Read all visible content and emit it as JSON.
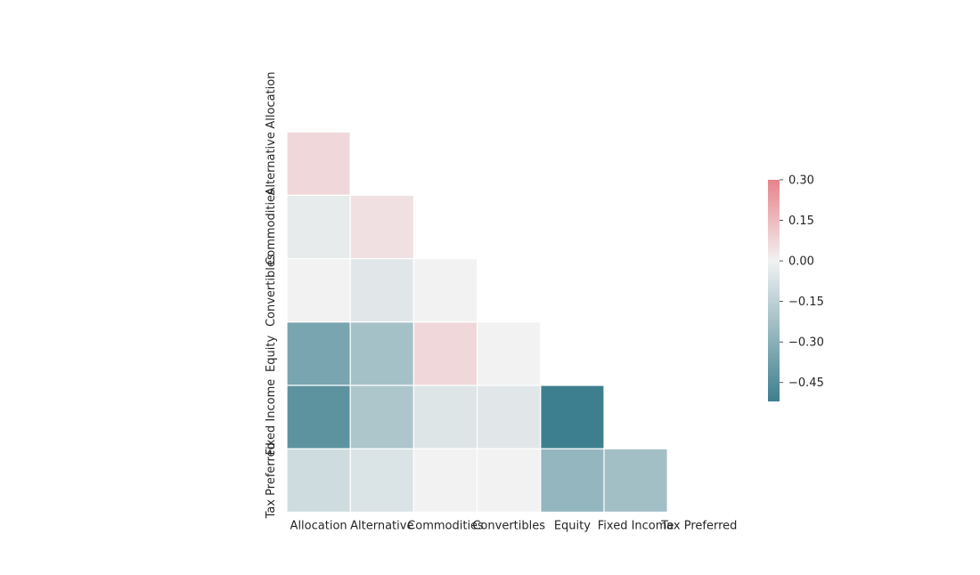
{
  "chart_data": {
    "type": "heatmap",
    "title": "",
    "xlabel": "",
    "ylabel": "",
    "variables": [
      "Allocation",
      "Alternative",
      "Commodities",
      "Convertibles",
      "Equity",
      "Fixed Income",
      "Tax Preferred"
    ],
    "mask": "upper-triangle-including-diagonal",
    "lower_triangle": [
      [
        null
      ],
      [
        0.07,
        null
      ],
      [
        -0.03,
        0.05,
        null
      ],
      [
        0.0,
        -0.05,
        0.0,
        null
      ],
      [
        -0.35,
        -0.22,
        0.07,
        0.0,
        null
      ],
      [
        -0.43,
        -0.2,
        -0.06,
        -0.05,
        -0.52,
        null
      ],
      [
        -0.1,
        -0.07,
        0.0,
        0.0,
        -0.27,
        -0.23,
        null
      ]
    ],
    "colorbar": {
      "min": -0.52,
      "max": 0.3,
      "ticks": [
        0.3,
        0.15,
        0.0,
        -0.15,
        -0.3,
        -0.45
      ],
      "tick_labels": [
        "0.30",
        "0.15",
        "0.00",
        "−0.15",
        "−0.30",
        "−0.45"
      ],
      "colormap": "diverging",
      "negative_color": "#3d7f8e",
      "neutral_color": "#f2f2f2",
      "positive_color": "#e8838b"
    },
    "grid": false,
    "legend_placement": "right"
  }
}
